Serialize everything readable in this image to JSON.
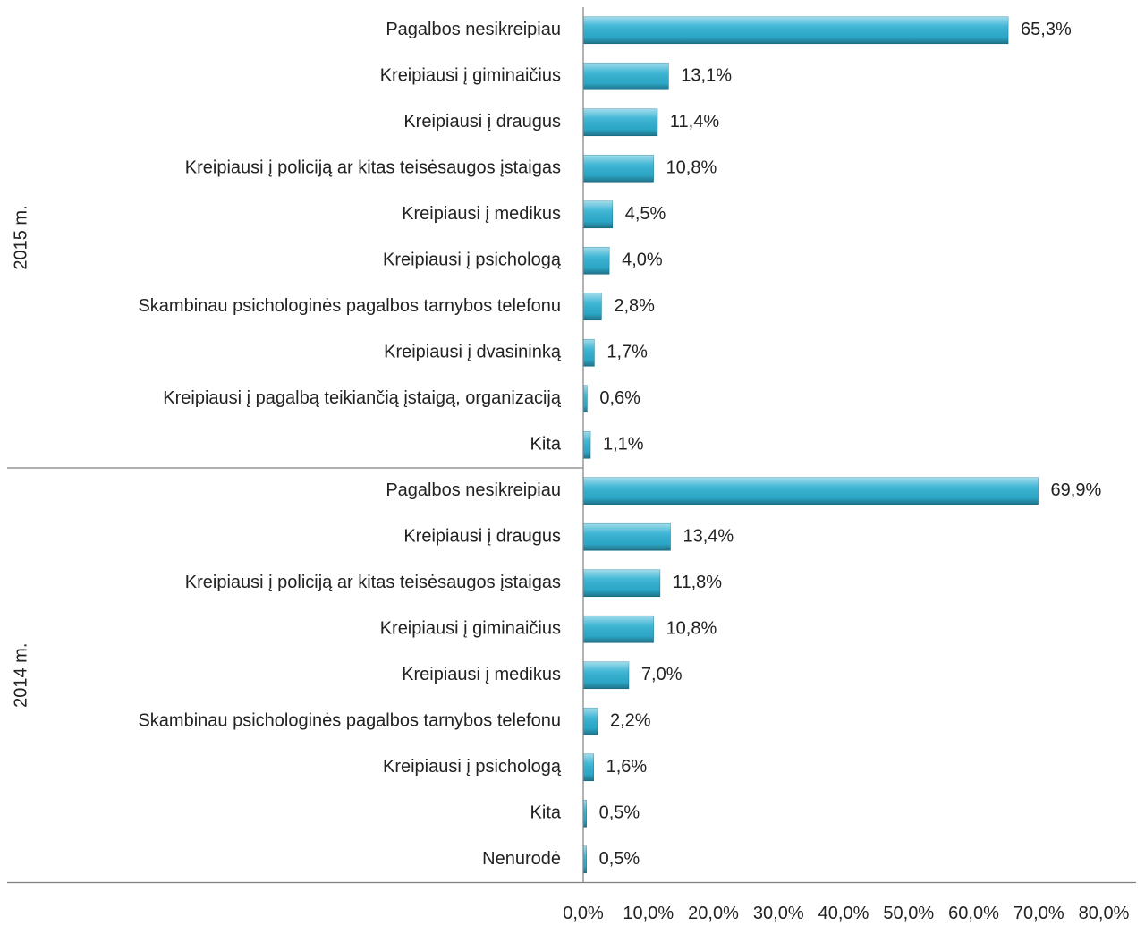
{
  "chart_data": {
    "type": "bar",
    "orientation": "horizontal",
    "color": "#2fb0d2",
    "groups": [
      {
        "name": "2015 m.",
        "categories": [
          "Pagalbos nesikreipiau",
          "Kreipiausi į giminaičius",
          "Kreipiausi į draugus",
          "Kreipiausi į policiją ar kitas teisėsaugos įstaigas",
          "Kreipiausi į medikus",
          "Kreipiausi į psichologą",
          "Skambinau psichologinės pagalbos tarnybos telefonu",
          "Kreipiausi į dvasininką",
          "Kreipiausi į pagalbą teikiančią įstaigą, organizaciją",
          "Kita"
        ],
        "values": [
          65.3,
          13.1,
          11.4,
          10.8,
          4.5,
          4.0,
          2.8,
          1.7,
          0.6,
          1.1
        ],
        "value_labels": [
          "65,3%",
          "13,1%",
          "11,4%",
          "10,8%",
          "4,5%",
          "4,0%",
          "2,8%",
          "1,7%",
          "0,6%",
          "1,1%"
        ]
      },
      {
        "name": "2014 m.",
        "categories": [
          "Pagalbos nesikreipiau",
          "Kreipiausi į draugus",
          "Kreipiausi į policiją ar kitas teisėsaugos įstaigas",
          "Kreipiausi į giminaičius",
          "Kreipiausi į medikus",
          "Skambinau psichologinės pagalbos tarnybos telefonu",
          "Kreipiausi į psichologą",
          "Kita",
          "Nenurodė"
        ],
        "values": [
          69.9,
          13.4,
          11.8,
          10.8,
          7.0,
          2.2,
          1.6,
          0.5,
          0.5
        ],
        "value_labels": [
          "69,9%",
          "13,4%",
          "11,8%",
          "10,8%",
          "7,0%",
          "2,2%",
          "1,6%",
          "0,5%",
          "0,5%"
        ]
      }
    ],
    "xlim": [
      0,
      80
    ],
    "xticks": [
      {
        "value": 0,
        "label": "0,0%"
      },
      {
        "value": 10,
        "label": "10,0%"
      },
      {
        "value": 20,
        "label": "20,0%"
      },
      {
        "value": 30,
        "label": "30,0%"
      },
      {
        "value": 40,
        "label": "40,0%"
      },
      {
        "value": 50,
        "label": "50,0%"
      },
      {
        "value": 60,
        "label": "60,0%"
      },
      {
        "value": 70,
        "label": "70,0%"
      },
      {
        "value": 80,
        "label": "80,0%"
      }
    ]
  }
}
